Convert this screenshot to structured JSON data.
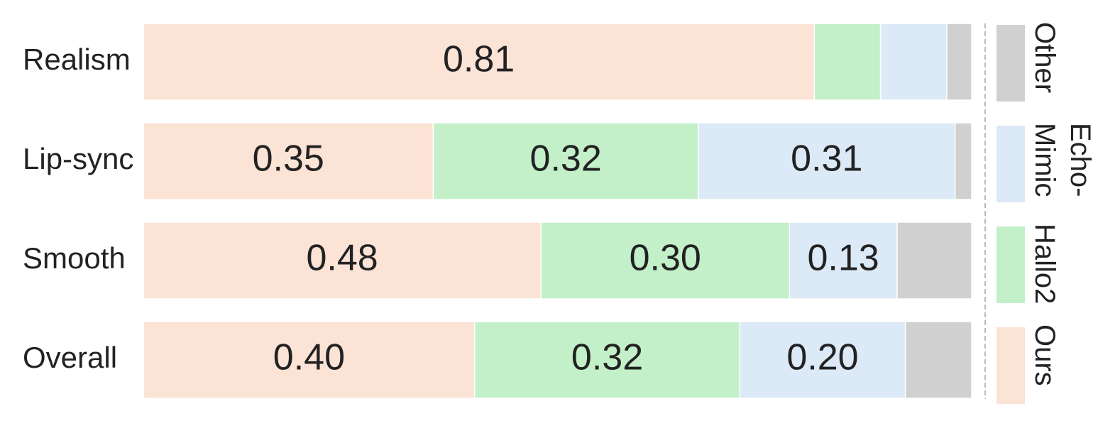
{
  "chart_data": {
    "type": "stacked-barh",
    "categories": [
      "Realism",
      "Lip-sync",
      "Smooth",
      "Overall"
    ],
    "xlim": [
      0,
      1
    ],
    "series": [
      {
        "name": "Ours",
        "color": "#fbe3d6",
        "values": [
          0.81,
          0.35,
          0.48,
          0.4
        ],
        "value_labels": [
          "0.81",
          "0.35",
          "0.48",
          "0.40"
        ]
      },
      {
        "name": "Hallo2",
        "color": "#c3f0c8",
        "values": [
          0.08,
          0.32,
          0.3,
          0.32
        ],
        "value_labels": [
          null,
          "0.32",
          "0.30",
          "0.32"
        ]
      },
      {
        "name": "Echo-Mimic",
        "color": "#dce9f6",
        "values": [
          0.08,
          0.31,
          0.13,
          0.2
        ],
        "value_labels": [
          null,
          "0.31",
          "0.13",
          "0.20"
        ]
      },
      {
        "name": "Other",
        "color": "#d0d0d0",
        "values": [
          0.03,
          0.02,
          0.09,
          0.08
        ]
      }
    ]
  }
}
